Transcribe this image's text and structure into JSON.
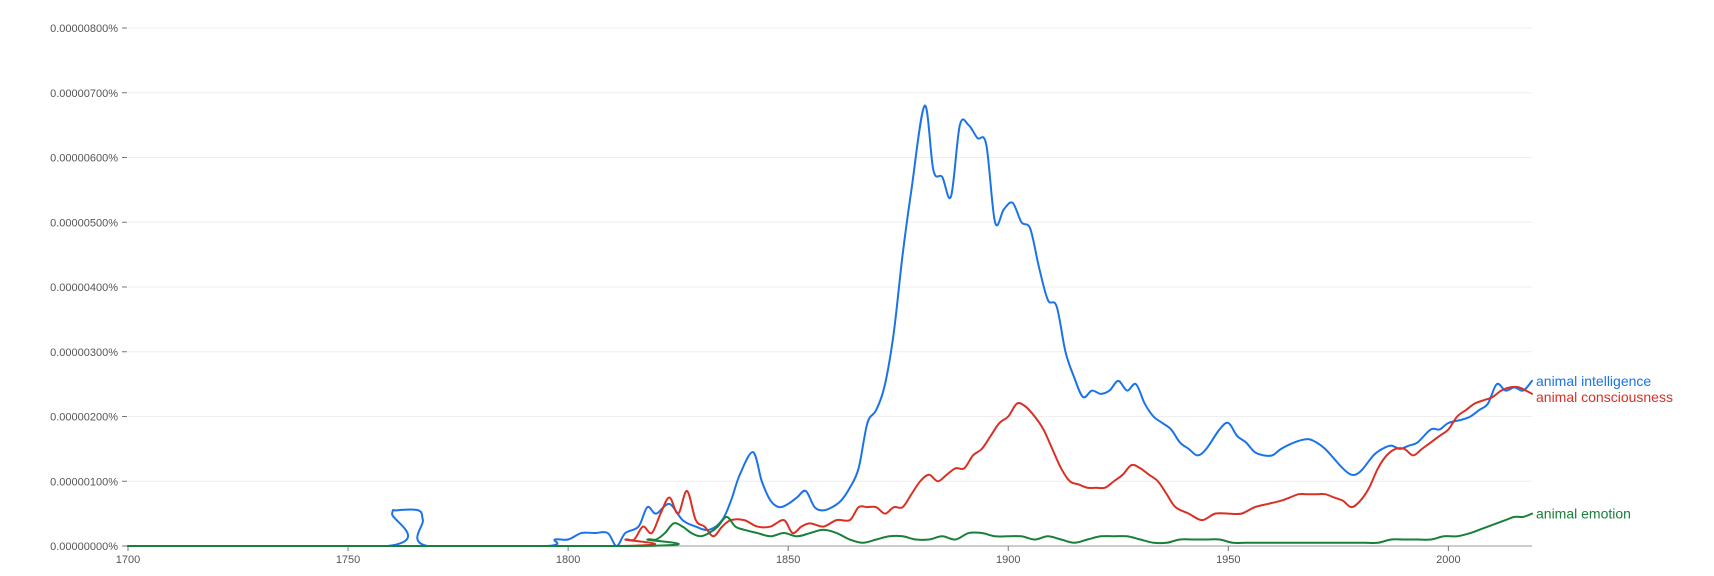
{
  "chart_data": {
    "type": "line",
    "title": "",
    "xlabel": "",
    "ylabel": "",
    "xlim": [
      1700,
      2019
    ],
    "ylim": [
      0,
      8e-08
    ],
    "grid": true,
    "legend": "inline-right",
    "x_ticks": [
      {
        "value": 1700,
        "label": "1700"
      },
      {
        "value": 1750,
        "label": "1750"
      },
      {
        "value": 1800,
        "label": "1800"
      },
      {
        "value": 1850,
        "label": "1850"
      },
      {
        "value": 1900,
        "label": "1900"
      },
      {
        "value": 1950,
        "label": "1950"
      },
      {
        "value": 2000,
        "label": "2000"
      }
    ],
    "y_ticks": [
      {
        "value": 0,
        "label": "0.00000000%"
      },
      {
        "value": 1e-08,
        "label": "0.00000100%"
      },
      {
        "value": 2e-08,
        "label": "0.00000200%"
      },
      {
        "value": 3e-08,
        "label": "0.00000300%"
      },
      {
        "value": 4e-08,
        "label": "0.00000400%"
      },
      {
        "value": 5e-08,
        "label": "0.00000500%"
      },
      {
        "value": 6e-08,
        "label": "0.00000600%"
      },
      {
        "value": 7e-08,
        "label": "0.00000700%"
      },
      {
        "value": 8e-08,
        "label": "0.00000800%"
      }
    ],
    "series": [
      {
        "name": "animal intelligence",
        "color": "#1a73e8",
        "points": [
          [
            1700,
            0
          ],
          [
            1759,
            0
          ],
          [
            1760,
            5e-09
          ],
          [
            1761,
            5.5e-09
          ],
          [
            1766,
            5.5e-09
          ],
          [
            1767,
            4e-09
          ],
          [
            1768,
            0
          ],
          [
            1795,
            0
          ],
          [
            1797,
            1e-09
          ],
          [
            1800,
            1e-09
          ],
          [
            1803,
            2e-09
          ],
          [
            1806,
            2e-09
          ],
          [
            1809,
            2e-09
          ],
          [
            1811,
            0
          ],
          [
            1813,
            2e-09
          ],
          [
            1816,
            3e-09
          ],
          [
            1818,
            6e-09
          ],
          [
            1820,
            5e-09
          ],
          [
            1823,
            6.5e-09
          ],
          [
            1826,
            4e-09
          ],
          [
            1829,
            3e-09
          ],
          [
            1832,
            2.5e-09
          ],
          [
            1835,
            4e-09
          ],
          [
            1837,
            7e-09
          ],
          [
            1839,
            1.1e-08
          ],
          [
            1842,
            1.45e-08
          ],
          [
            1844,
            1e-08
          ],
          [
            1846,
            7e-09
          ],
          [
            1848,
            6e-09
          ],
          [
            1850,
            6.5e-09
          ],
          [
            1852,
            7.5e-09
          ],
          [
            1854,
            8.5e-09
          ],
          [
            1856,
            6e-09
          ],
          [
            1858,
            5.5e-09
          ],
          [
            1860,
            6e-09
          ],
          [
            1862,
            7e-09
          ],
          [
            1864,
            9e-09
          ],
          [
            1866,
            1.2e-08
          ],
          [
            1868,
            1.9e-08
          ],
          [
            1870,
            2.1e-08
          ],
          [
            1872,
            2.5e-08
          ],
          [
            1874,
            3.3e-08
          ],
          [
            1876,
            4.5e-08
          ],
          [
            1878,
            5.5e-08
          ],
          [
            1881,
            6.8e-08
          ],
          [
            1883,
            5.8e-08
          ],
          [
            1885,
            5.7e-08
          ],
          [
            1887,
            5.4e-08
          ],
          [
            1889,
            6.5e-08
          ],
          [
            1891,
            6.5e-08
          ],
          [
            1893,
            6.3e-08
          ],
          [
            1895,
            6.2e-08
          ],
          [
            1897,
            5e-08
          ],
          [
            1899,
            5.2e-08
          ],
          [
            1901,
            5.3e-08
          ],
          [
            1903,
            5e-08
          ],
          [
            1905,
            4.9e-08
          ],
          [
            1907,
            4.3e-08
          ],
          [
            1909,
            3.8e-08
          ],
          [
            1911,
            3.7e-08
          ],
          [
            1913,
            3e-08
          ],
          [
            1915,
            2.6e-08
          ],
          [
            1917,
            2.3e-08
          ],
          [
            1919,
            2.4e-08
          ],
          [
            1921,
            2.35e-08
          ],
          [
            1923,
            2.4e-08
          ],
          [
            1925,
            2.55e-08
          ],
          [
            1927,
            2.4e-08
          ],
          [
            1929,
            2.5e-08
          ],
          [
            1931,
            2.2e-08
          ],
          [
            1933,
            2e-08
          ],
          [
            1935,
            1.9e-08
          ],
          [
            1937,
            1.8e-08
          ],
          [
            1939,
            1.6e-08
          ],
          [
            1941,
            1.5e-08
          ],
          [
            1943,
            1.4e-08
          ],
          [
            1945,
            1.5e-08
          ],
          [
            1948,
            1.8e-08
          ],
          [
            1950,
            1.9e-08
          ],
          [
            1952,
            1.7e-08
          ],
          [
            1954,
            1.6e-08
          ],
          [
            1956,
            1.45e-08
          ],
          [
            1958,
            1.4e-08
          ],
          [
            1960,
            1.4e-08
          ],
          [
            1962,
            1.5e-08
          ],
          [
            1965,
            1.6e-08
          ],
          [
            1968,
            1.65e-08
          ],
          [
            1970,
            1.6e-08
          ],
          [
            1972,
            1.5e-08
          ],
          [
            1974,
            1.35e-08
          ],
          [
            1976,
            1.2e-08
          ],
          [
            1978,
            1.1e-08
          ],
          [
            1980,
            1.15e-08
          ],
          [
            1983,
            1.4e-08
          ],
          [
            1985,
            1.5e-08
          ],
          [
            1987,
            1.55e-08
          ],
          [
            1989,
            1.5e-08
          ],
          [
            1991,
            1.55e-08
          ],
          [
            1993,
            1.6e-08
          ],
          [
            1996,
            1.8e-08
          ],
          [
            1998,
            1.8e-08
          ],
          [
            2000,
            1.9e-08
          ],
          [
            2003,
            1.95e-08
          ],
          [
            2005,
            2e-08
          ],
          [
            2007,
            2.1e-08
          ],
          [
            2009,
            2.2e-08
          ],
          [
            2011,
            2.5e-08
          ],
          [
            2013,
            2.4e-08
          ],
          [
            2015,
            2.45e-08
          ],
          [
            2017,
            2.4e-08
          ],
          [
            2019,
            2.55e-08
          ]
        ]
      },
      {
        "name": "animal consciousness",
        "color": "#d93025",
        "points": [
          [
            1700,
            0
          ],
          [
            1811,
            0
          ],
          [
            1813,
            1e-09
          ],
          [
            1815,
            1e-09
          ],
          [
            1817,
            3e-09
          ],
          [
            1819,
            2e-09
          ],
          [
            1821,
            5e-09
          ],
          [
            1823,
            7.5e-09
          ],
          [
            1825,
            5e-09
          ],
          [
            1827,
            8.5e-09
          ],
          [
            1829,
            4e-09
          ],
          [
            1831,
            3e-09
          ],
          [
            1833,
            1.5e-09
          ],
          [
            1835,
            3e-09
          ],
          [
            1837,
            4e-09
          ],
          [
            1840,
            4e-09
          ],
          [
            1843,
            3e-09
          ],
          [
            1846,
            3e-09
          ],
          [
            1849,
            4e-09
          ],
          [
            1851,
            2e-09
          ],
          [
            1853,
            3e-09
          ],
          [
            1855,
            3.5e-09
          ],
          [
            1858,
            3e-09
          ],
          [
            1861,
            4e-09
          ],
          [
            1864,
            4e-09
          ],
          [
            1866,
            6e-09
          ],
          [
            1868,
            6e-09
          ],
          [
            1870,
            6e-09
          ],
          [
            1872,
            5e-09
          ],
          [
            1874,
            6e-09
          ],
          [
            1876,
            6e-09
          ],
          [
            1878,
            8e-09
          ],
          [
            1880,
            1e-08
          ],
          [
            1882,
            1.1e-08
          ],
          [
            1884,
            1e-08
          ],
          [
            1886,
            1.1e-08
          ],
          [
            1888,
            1.2e-08
          ],
          [
            1890,
            1.2e-08
          ],
          [
            1892,
            1.4e-08
          ],
          [
            1894,
            1.5e-08
          ],
          [
            1896,
            1.7e-08
          ],
          [
            1898,
            1.9e-08
          ],
          [
            1900,
            2e-08
          ],
          [
            1902,
            2.2e-08
          ],
          [
            1904,
            2.15e-08
          ],
          [
            1906,
            2e-08
          ],
          [
            1908,
            1.8e-08
          ],
          [
            1910,
            1.5e-08
          ],
          [
            1912,
            1.2e-08
          ],
          [
            1914,
            1e-08
          ],
          [
            1916,
            9.5e-09
          ],
          [
            1918,
            9e-09
          ],
          [
            1920,
            9e-09
          ],
          [
            1922,
            9e-09
          ],
          [
            1924,
            1e-08
          ],
          [
            1926,
            1.1e-08
          ],
          [
            1928,
            1.25e-08
          ],
          [
            1930,
            1.2e-08
          ],
          [
            1932,
            1.1e-08
          ],
          [
            1934,
            1e-08
          ],
          [
            1936,
            8e-09
          ],
          [
            1938,
            6e-09
          ],
          [
            1941,
            5e-09
          ],
          [
            1944,
            4e-09
          ],
          [
            1947,
            5e-09
          ],
          [
            1950,
            5e-09
          ],
          [
            1953,
            5e-09
          ],
          [
            1956,
            6e-09
          ],
          [
            1959,
            6.5e-09
          ],
          [
            1962,
            7e-09
          ],
          [
            1964,
            7.5e-09
          ],
          [
            1966,
            8e-09
          ],
          [
            1968,
            8e-09
          ],
          [
            1970,
            8e-09
          ],
          [
            1972,
            8e-09
          ],
          [
            1974,
            7.5e-09
          ],
          [
            1976,
            7e-09
          ],
          [
            1978,
            6e-09
          ],
          [
            1980,
            7e-09
          ],
          [
            1982,
            9e-09
          ],
          [
            1984,
            1.2e-08
          ],
          [
            1986,
            1.4e-08
          ],
          [
            1988,
            1.5e-08
          ],
          [
            1990,
            1.5e-08
          ],
          [
            1992,
            1.4e-08
          ],
          [
            1994,
            1.5e-08
          ],
          [
            1996,
            1.6e-08
          ],
          [
            1998,
            1.7e-08
          ],
          [
            2000,
            1.8e-08
          ],
          [
            2002,
            2e-08
          ],
          [
            2004,
            2.1e-08
          ],
          [
            2006,
            2.2e-08
          ],
          [
            2008,
            2.25e-08
          ],
          [
            2010,
            2.3e-08
          ],
          [
            2012,
            2.4e-08
          ],
          [
            2014,
            2.45e-08
          ],
          [
            2016,
            2.45e-08
          ],
          [
            2019,
            2.35e-08
          ]
        ]
      },
      {
        "name": "animal emotion",
        "color": "#188038",
        "points": [
          [
            1700,
            0
          ],
          [
            1816,
            0
          ],
          [
            1818,
            1e-09
          ],
          [
            1820,
            1e-09
          ],
          [
            1822,
            2e-09
          ],
          [
            1824,
            3.5e-09
          ],
          [
            1826,
            3e-09
          ],
          [
            1828,
            2e-09
          ],
          [
            1830,
            1.5e-09
          ],
          [
            1832,
            2e-09
          ],
          [
            1834,
            3e-09
          ],
          [
            1836,
            4.5e-09
          ],
          [
            1838,
            3e-09
          ],
          [
            1840,
            2.5e-09
          ],
          [
            1843,
            2e-09
          ],
          [
            1846,
            1.5e-09
          ],
          [
            1849,
            2e-09
          ],
          [
            1852,
            1.5e-09
          ],
          [
            1855,
            2e-09
          ],
          [
            1858,
            2.5e-09
          ],
          [
            1861,
            2e-09
          ],
          [
            1864,
            1e-09
          ],
          [
            1867,
            5e-10
          ],
          [
            1870,
            1e-09
          ],
          [
            1873,
            1.5e-09
          ],
          [
            1876,
            1.5e-09
          ],
          [
            1879,
            1e-09
          ],
          [
            1882,
            1e-09
          ],
          [
            1885,
            1.5e-09
          ],
          [
            1888,
            1e-09
          ],
          [
            1891,
            2e-09
          ],
          [
            1894,
            2e-09
          ],
          [
            1897,
            1.5e-09
          ],
          [
            1900,
            1.5e-09
          ],
          [
            1903,
            1.5e-09
          ],
          [
            1906,
            1e-09
          ],
          [
            1909,
            1.5e-09
          ],
          [
            1912,
            1e-09
          ],
          [
            1915,
            5e-10
          ],
          [
            1918,
            1e-09
          ],
          [
            1921,
            1.5e-09
          ],
          [
            1924,
            1.5e-09
          ],
          [
            1927,
            1.5e-09
          ],
          [
            1930,
            1e-09
          ],
          [
            1933,
            5e-10
          ],
          [
            1936,
            5e-10
          ],
          [
            1939,
            1e-09
          ],
          [
            1942,
            1e-09
          ],
          [
            1945,
            1e-09
          ],
          [
            1948,
            1e-09
          ],
          [
            1951,
            5e-10
          ],
          [
            1954,
            5e-10
          ],
          [
            1957,
            5e-10
          ],
          [
            1960,
            5e-10
          ],
          [
            1963,
            5e-10
          ],
          [
            1966,
            5e-10
          ],
          [
            1969,
            5e-10
          ],
          [
            1972,
            5e-10
          ],
          [
            1975,
            5e-10
          ],
          [
            1978,
            5e-10
          ],
          [
            1981,
            5e-10
          ],
          [
            1984,
            5e-10
          ],
          [
            1987,
            1e-09
          ],
          [
            1990,
            1e-09
          ],
          [
            1993,
            1e-09
          ],
          [
            1996,
            1e-09
          ],
          [
            1999,
            1.5e-09
          ],
          [
            2002,
            1.5e-09
          ],
          [
            2005,
            2e-09
          ],
          [
            2007,
            2.5e-09
          ],
          [
            2009,
            3e-09
          ],
          [
            2011,
            3.5e-09
          ],
          [
            2013,
            4e-09
          ],
          [
            2015,
            4.5e-09
          ],
          [
            2017,
            4.5e-09
          ],
          [
            2019,
            5e-09
          ]
        ]
      }
    ]
  }
}
